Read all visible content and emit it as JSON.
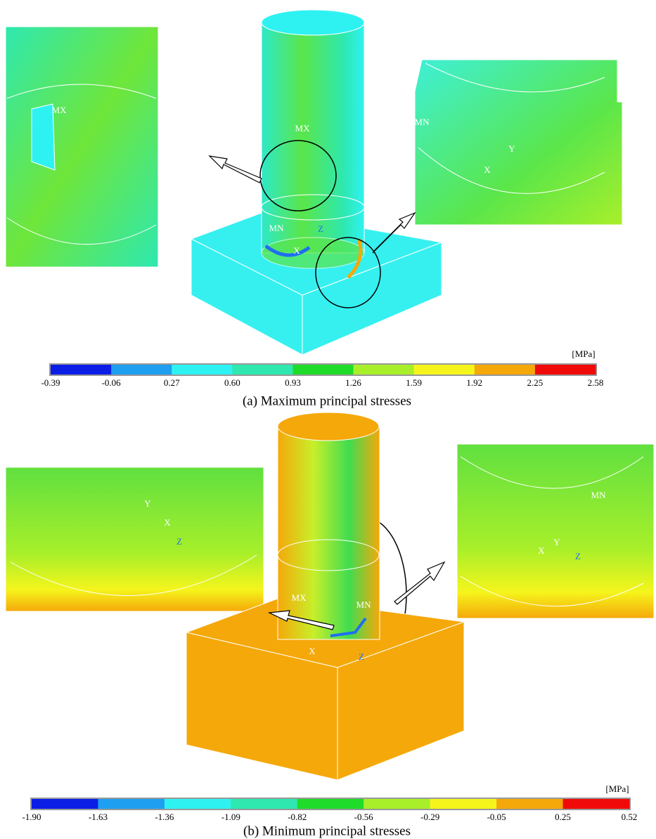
{
  "panels": [
    {
      "caption": "(a) Maximum principal stresses",
      "unit": "[MPa]",
      "scale_labels": [
        "-0.39",
        "-0.06",
        "0.27",
        "0.60",
        "0.93",
        "1.26",
        "1.59",
        "1.92",
        "2.25",
        "2.58"
      ],
      "scale_colors": [
        "#0a1ee6",
        "#1e9ff0",
        "#2ef2f2",
        "#2ee8b0",
        "#1fdc2a",
        "#a8ef2a",
        "#f5f51c",
        "#f5a80a",
        "#f00a0a"
      ],
      "labels": [
        "MX",
        "MN",
        "Z",
        "X",
        "MX",
        "MN",
        "X",
        "Y"
      ]
    },
    {
      "caption": "(b) Minimum principal stresses",
      "unit": "[MPa]",
      "scale_labels": [
        "-1.90",
        "-1.63",
        "-1.36",
        "-1.09",
        "-0.82",
        "-0.56",
        "-0.29",
        "-0.05",
        "0.25",
        "0.52"
      ],
      "scale_colors": [
        "#0a1ee6",
        "#1e9ff0",
        "#2ef2f2",
        "#2ee8b0",
        "#1fdc2a",
        "#a8ef2a",
        "#f5f51c",
        "#f5a80a",
        "#f00a0a"
      ],
      "labels": [
        "MX",
        "MN",
        "X",
        "Z",
        "X",
        "Y",
        "Z",
        "MN",
        "X",
        "Y",
        "Z"
      ]
    }
  ]
}
